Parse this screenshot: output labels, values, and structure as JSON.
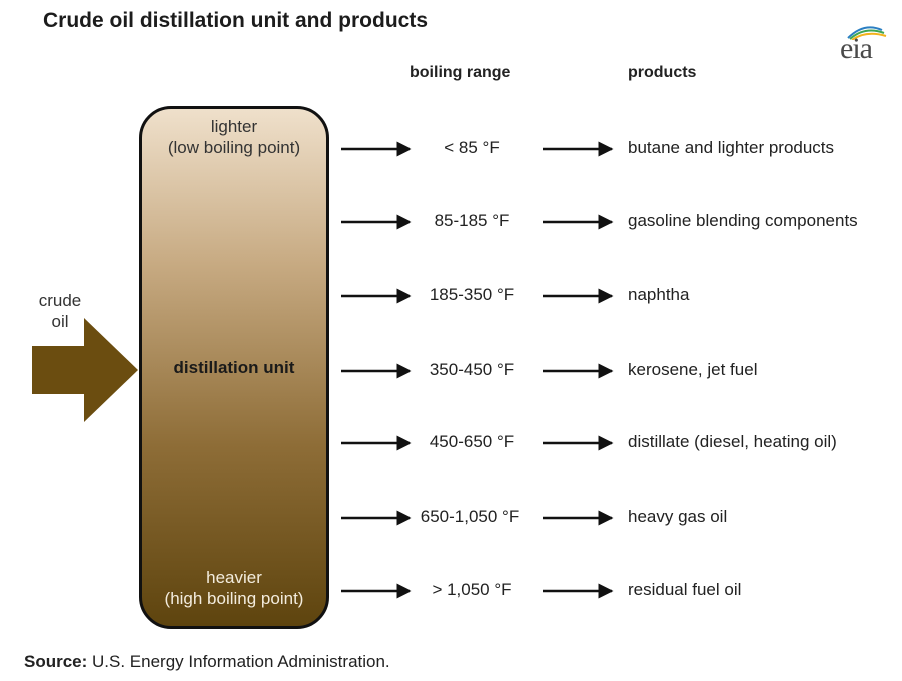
{
  "title": "Crude oil distillation  unit and products",
  "logo_text": "eia",
  "headers": {
    "boiling_range": "boiling range",
    "products": "products"
  },
  "column": {
    "top_label": [
      "lighter",
      "(low boiling point)"
    ],
    "center_label": "distillation unit",
    "bottom_label": [
      "heavier",
      "(high boiling point)"
    ]
  },
  "feed_label": [
    "crude",
    "oil"
  ],
  "rows": [
    {
      "range": "< 85 °F",
      "product": "butane and lighter products"
    },
    {
      "range": "85-185 °F",
      "product": "gasoline blending components"
    },
    {
      "range": "185-350 °F",
      "product": "naphtha"
    },
    {
      "range": "350-450 °F",
      "product": "kerosene, jet fuel"
    },
    {
      "range": "450-650 °F",
      "product": "distillate (diesel, heating oil)"
    },
    {
      "range": "650-1,050 °F",
      "product": "heavy gas oil"
    },
    {
      "range": "> 1,050 °F",
      "product": "residual fuel oil"
    }
  ],
  "source": {
    "label": "Source:",
    "text": " U.S. Energy Information Administration."
  },
  "colors": {
    "column_top": "#efe0cb",
    "column_bottom": "#5e440e",
    "feed_arrow": "#6b4d10",
    "logo_arcs": [
      "#2b7fc2",
      "#3fa653",
      "#f2b21c"
    ]
  }
}
